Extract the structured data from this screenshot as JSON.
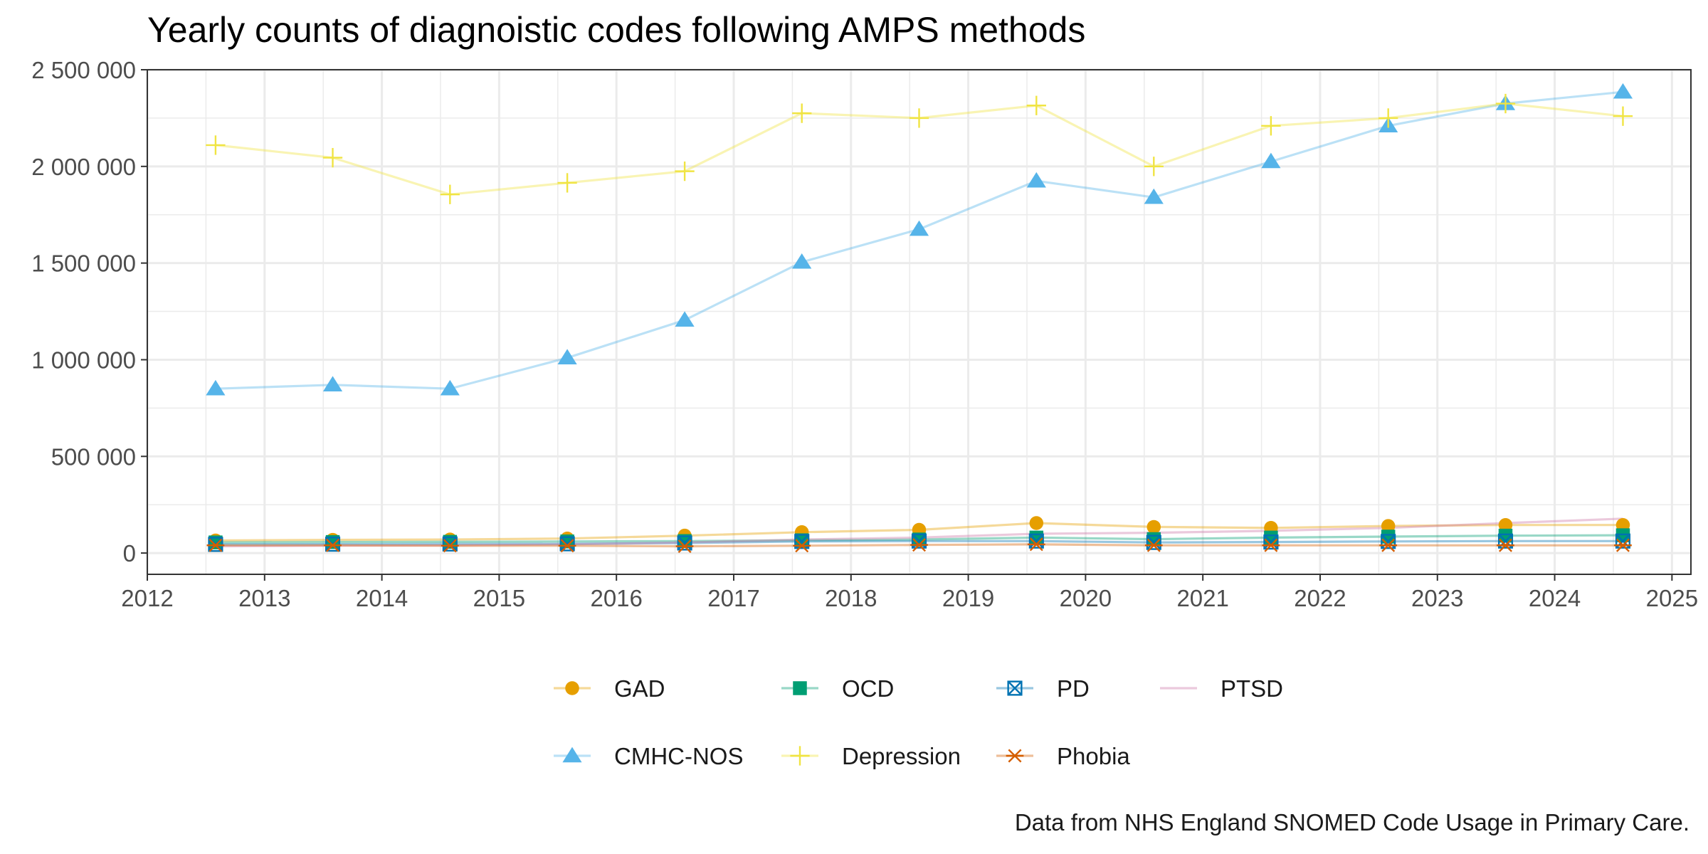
{
  "chart_data": {
    "type": "line",
    "title": "Yearly counts of diagnoistic codes following AMPS methods",
    "caption": "Data from NHS England SNOMED Code Usage in Primary Care.",
    "xlabel": "",
    "ylabel": "",
    "x_ticks": [
      "2012",
      "2013",
      "2014",
      "2015",
      "2016",
      "2017",
      "2018",
      "2019",
      "2020",
      "2021",
      "2022",
      "2023",
      "2024",
      "2025"
    ],
    "y_ticks": [
      "0",
      "500 000",
      "1 000 000",
      "1 500 000",
      "2 000 000",
      "2 500 000"
    ],
    "xlim": [
      "2012-01-01",
      "2025-03-01"
    ],
    "ylim": [
      -110000,
      2500000
    ],
    "grid": true,
    "legend_position": "bottom",
    "x": [
      "2012-08-01",
      "2013-08-01",
      "2014-08-01",
      "2015-08-01",
      "2016-08-01",
      "2017-08-01",
      "2018-08-01",
      "2019-08-01",
      "2020-08-01",
      "2021-08-01",
      "2022-08-01",
      "2023-08-01",
      "2024-08-01"
    ],
    "series": [
      {
        "name": "GAD",
        "color": "#E69F00",
        "marker": "circle",
        "values": [
          65000,
          68000,
          70000,
          75000,
          90000,
          108000,
          120000,
          155000,
          135000,
          130000,
          140000,
          145000,
          145000
        ]
      },
      {
        "name": "OCD",
        "color": "#009E73",
        "marker": "square",
        "values": [
          55000,
          57000,
          58000,
          60000,
          62000,
          66000,
          70000,
          80000,
          72000,
          80000,
          85000,
          90000,
          92000
        ]
      },
      {
        "name": "PD",
        "color": "#0072B2",
        "marker": "square-cross",
        "values": [
          45000,
          46000,
          47000,
          48000,
          52000,
          60000,
          62000,
          62000,
          55000,
          57000,
          60000,
          62000,
          62000
        ]
      },
      {
        "name": "PTSD",
        "color": "#CC79A7",
        "marker": "none",
        "values": [
          35000,
          38000,
          40000,
          45000,
          55000,
          70000,
          80000,
          100000,
          105000,
          115000,
          130000,
          155000,
          178000
        ]
      },
      {
        "name": "CMHC-NOS",
        "color": "#56B4E9",
        "marker": "triangle",
        "values": [
          850000,
          870000,
          850000,
          1010000,
          1205000,
          1505000,
          1675000,
          1925000,
          1840000,
          2025000,
          2210000,
          2325000,
          2385000
        ]
      },
      {
        "name": "Depression",
        "color": "#F0E442",
        "marker": "plus",
        "values": [
          2110000,
          2045000,
          1855000,
          1915000,
          1975000,
          2275000,
          2250000,
          2315000,
          2000000,
          2210000,
          2250000,
          2325000,
          2260000
        ]
      },
      {
        "name": "Phobia",
        "color": "#D55E00",
        "marker": "asterisk",
        "values": [
          40000,
          40000,
          38000,
          38000,
          35000,
          38000,
          42000,
          45000,
          40000,
          40000,
          40000,
          40000,
          40000
        ]
      }
    ]
  }
}
